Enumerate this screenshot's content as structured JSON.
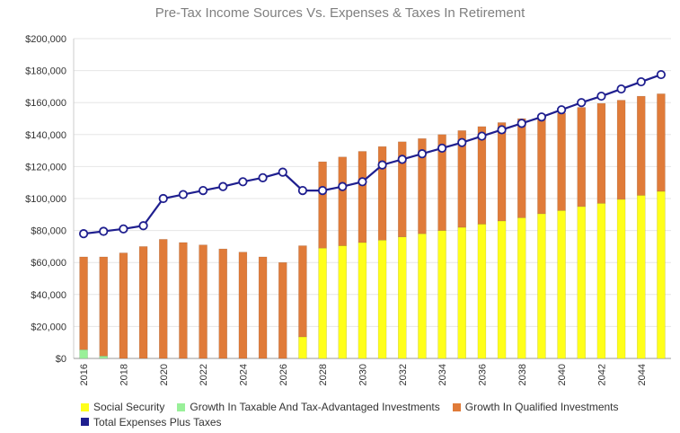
{
  "chart_data": {
    "type": "bar",
    "title": "Pre-Tax Income Sources Vs. Expenses & Taxes In Retirement",
    "xlabel": "",
    "ylabel": "",
    "ylim": [
      0,
      200000
    ],
    "yticks": [
      "$0",
      "$20,000",
      "$40,000",
      "$60,000",
      "$80,000",
      "$100,000",
      "$120,000",
      "$140,000",
      "$160,000",
      "$180,000",
      "$200,000"
    ],
    "grid": true,
    "stacked": true,
    "categories": [
      "2016",
      "2017",
      "2018",
      "2019",
      "2020",
      "2021",
      "2022",
      "2023",
      "2024",
      "2025",
      "2026",
      "2027",
      "2028",
      "2029",
      "2030",
      "2031",
      "2032",
      "2033",
      "2034",
      "2035",
      "2036",
      "2037",
      "2038",
      "2039",
      "2040",
      "2041",
      "2042",
      "2043",
      "2044",
      "2045"
    ],
    "xtick_labels": [
      "2016",
      "2018",
      "2020",
      "2022",
      "2024",
      "2026",
      "2028",
      "2030",
      "2032",
      "2034",
      "2036",
      "2038",
      "2040",
      "2042",
      "2044"
    ],
    "series": [
      {
        "name": "Social Security",
        "type": "bar",
        "color": "#ffff1a",
        "values": [
          0,
          0,
          0,
          0,
          0,
          0,
          0,
          0,
          0,
          0,
          0,
          13500,
          69000,
          70500,
          72500,
          74000,
          76000,
          78000,
          80000,
          82000,
          84000,
          86000,
          88000,
          90500,
          92500,
          95000,
          97000,
          99500,
          102000,
          104500
        ]
      },
      {
        "name": "Growth In Taxable And Tax-Advantaged Investments",
        "type": "bar",
        "color": "#99f099",
        "values": [
          5500,
          1500,
          0,
          0,
          0,
          0,
          0,
          0,
          0,
          0,
          0,
          0,
          0,
          0,
          0,
          0,
          0,
          0,
          0,
          0,
          0,
          0,
          0,
          0,
          0,
          0,
          0,
          0,
          0,
          0
        ]
      },
      {
        "name": "Growth In Qualified Investments",
        "type": "bar",
        "color": "#e07b39",
        "values": [
          58000,
          62000,
          66000,
          70000,
          74500,
          72500,
          71000,
          68500,
          66500,
          63500,
          60000,
          57000,
          54000,
          55500,
          57000,
          58500,
          59500,
          59500,
          60000,
          60500,
          61000,
          61500,
          62000,
          60500,
          61000,
          62000,
          62500,
          62000,
          62000,
          61000
        ]
      },
      {
        "name": "Total Expenses Plus Taxes",
        "type": "line",
        "color": "#1f1f8f",
        "values": [
          78000,
          79500,
          81000,
          83000,
          100000,
          102500,
          105000,
          107500,
          110500,
          113000,
          116500,
          105000,
          105000,
          107500,
          110500,
          121000,
          124500,
          128000,
          131500,
          135000,
          139000,
          143000,
          147000,
          151000,
          155500,
          160000,
          164000,
          168500,
          173000,
          177500
        ]
      }
    ]
  }
}
